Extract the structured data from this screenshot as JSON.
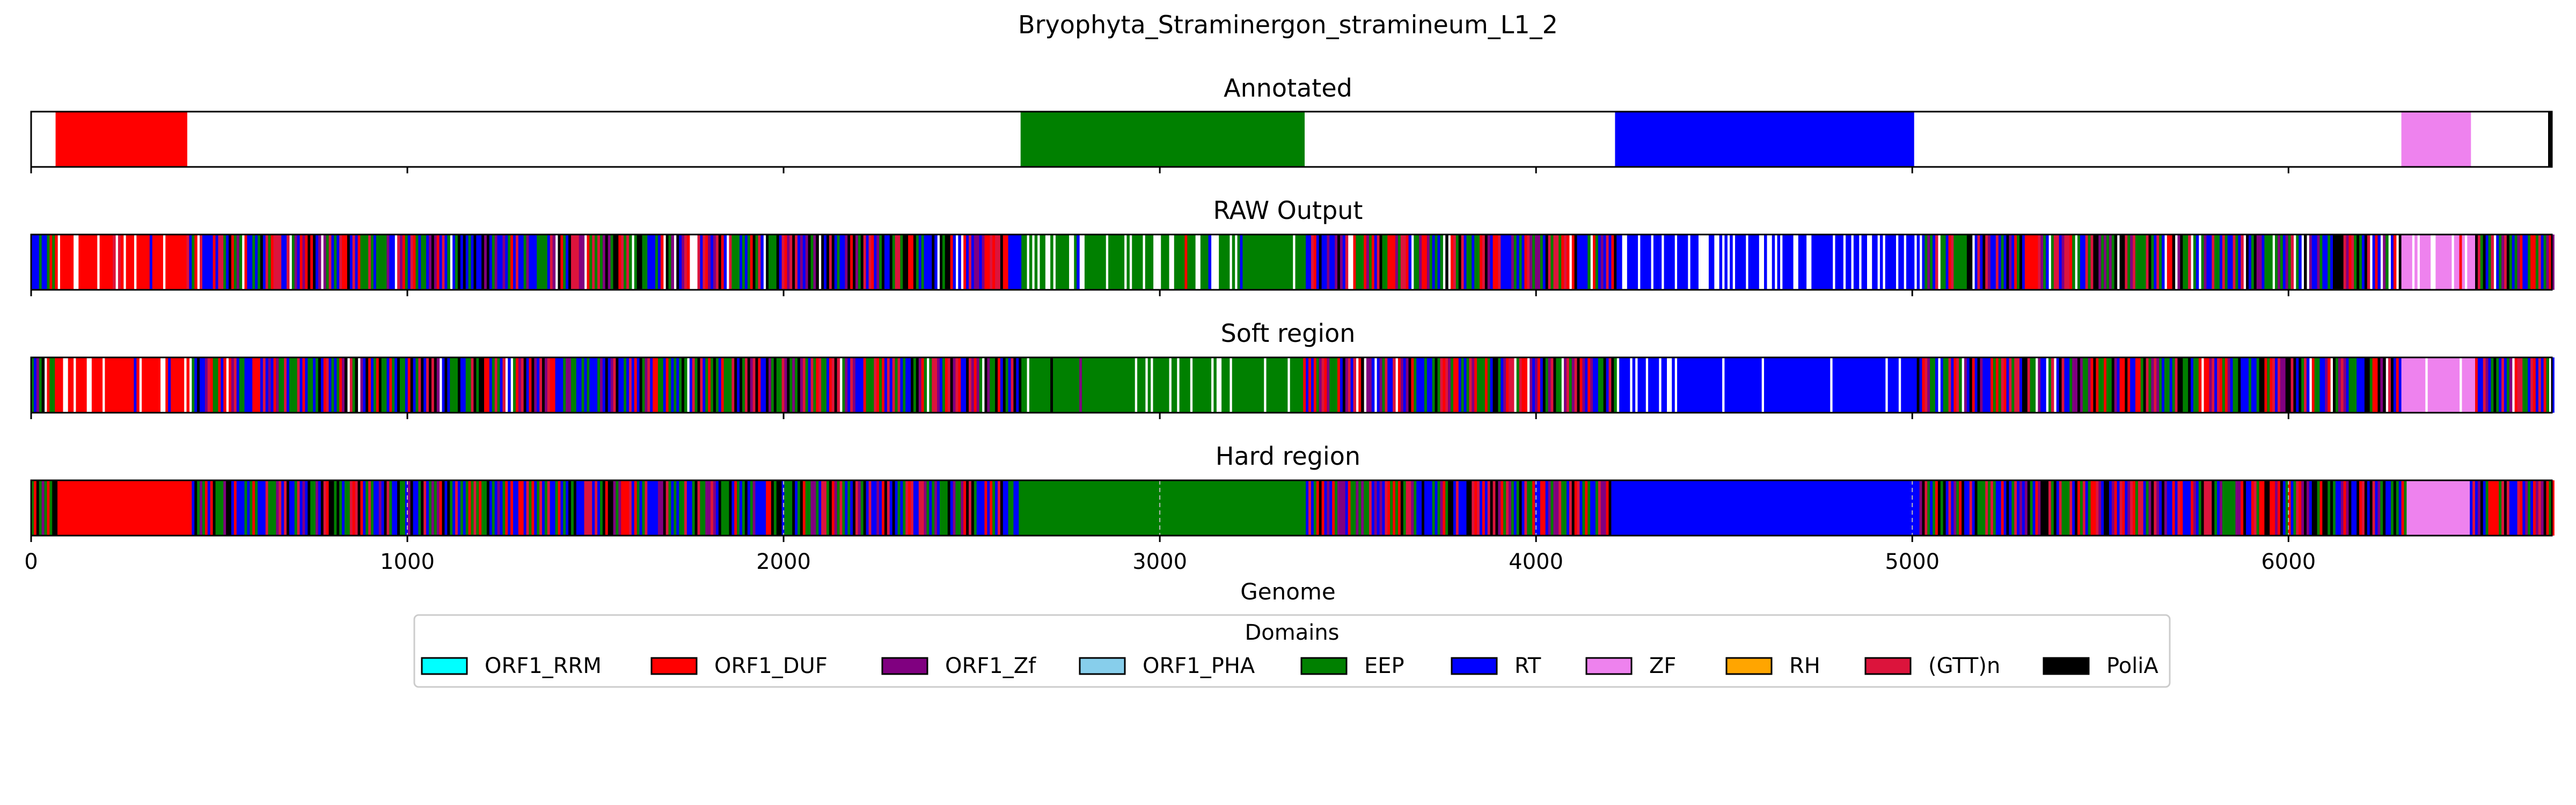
{
  "chart_data": {
    "type": "heatmap",
    "title": "Bryophyta_Straminergon_stramineum_L1_2",
    "xlabel": "Genome",
    "xlim": [
      0,
      6700
    ],
    "xticks": [
      0,
      1000,
      2000,
      3000,
      4000,
      5000,
      6000
    ],
    "xtick_labels": [
      "0",
      "1000",
      "2000",
      "3000",
      "4000",
      "5000",
      "6000"
    ],
    "legend": {
      "title": "Domains",
      "placement": "bottom-center",
      "items": [
        {
          "name": "ORF1_RRM",
          "color": "#00ffff"
        },
        {
          "name": "ORF1_DUF",
          "color": "#ff0000"
        },
        {
          "name": "ORF1_Zf",
          "color": "#800080"
        },
        {
          "name": "ORF1_PHA",
          "color": "#87ceeb"
        },
        {
          "name": "EEP",
          "color": "#008000"
        },
        {
          "name": "RT",
          "color": "#0000ff"
        },
        {
          "name": "ZF",
          "color": "#ee82ee"
        },
        {
          "name": "RH",
          "color": "#ffa500"
        },
        {
          "name": "(GTT)n",
          "color": "#dc143c"
        },
        {
          "name": "PoliA",
          "color": "#000000"
        }
      ]
    },
    "panels": [
      {
        "title": "Annotated",
        "kind": "annotated",
        "regions": [
          {
            "domain": "ORF1_DUF",
            "start": 65,
            "end": 415
          },
          {
            "domain": "EEP",
            "start": 2630,
            "end": 3385
          },
          {
            "domain": "RT",
            "start": 4210,
            "end": 5005
          },
          {
            "domain": "ZF",
            "start": 6300,
            "end": 6485
          },
          {
            "domain": "PoliA",
            "start": 6690,
            "end": 6700
          }
        ]
      },
      {
        "title": "RAW Output",
        "kind": "raw",
        "dominant": [
          {
            "domain": "ORF1_DUF",
            "start": 60,
            "end": 415
          },
          {
            "domain": "EEP",
            "start": 2630,
            "end": 3380
          },
          {
            "domain": "RT",
            "start": 4210,
            "end": 5000
          },
          {
            "domain": "ZF",
            "start": 6300,
            "end": 6490
          }
        ]
      },
      {
        "title": "Soft region",
        "kind": "soft",
        "dominant": [
          {
            "domain": "ORF1_DUF",
            "start": 60,
            "end": 415
          },
          {
            "domain": "EEP",
            "start": 2630,
            "end": 3380
          },
          {
            "domain": "RT",
            "start": 4210,
            "end": 5005
          },
          {
            "domain": "ZF",
            "start": 6300,
            "end": 6490
          }
        ]
      },
      {
        "title": "Hard region",
        "kind": "hard",
        "dominant": [
          {
            "domain": "ORF1_DUF",
            "start": 65,
            "end": 415
          },
          {
            "domain": "EEP",
            "start": 2625,
            "end": 3385
          },
          {
            "domain": "RT",
            "start": 4195,
            "end": 5010
          },
          {
            "domain": "ZF",
            "start": 6310,
            "end": 6480
          }
        ]
      }
    ]
  }
}
